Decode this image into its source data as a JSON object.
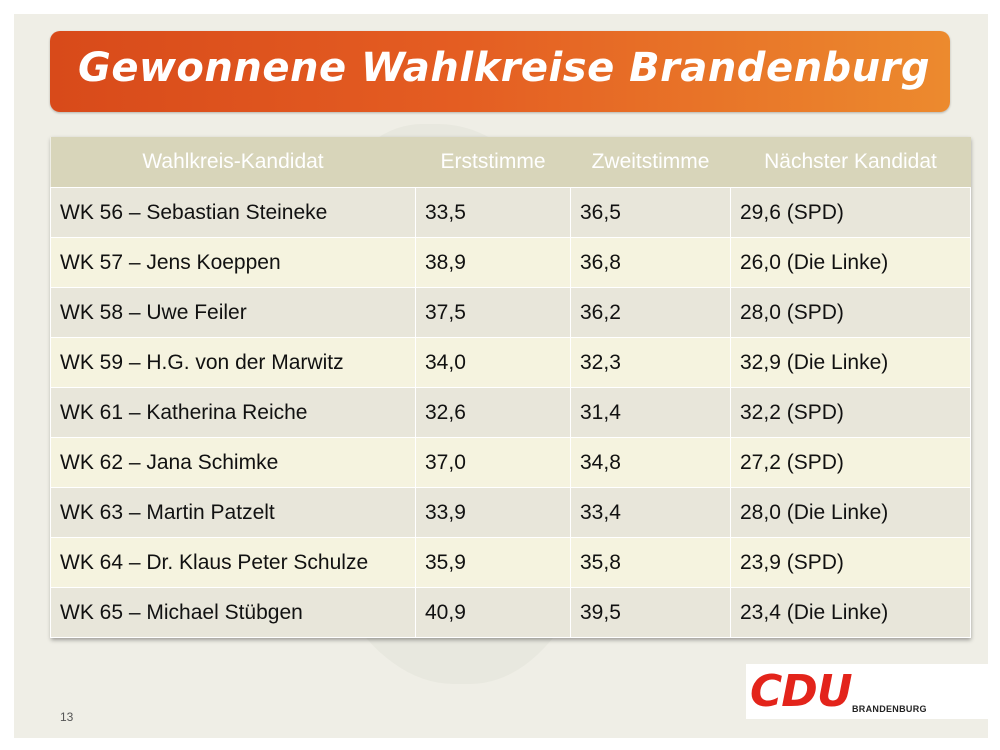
{
  "title": "Gewonnene Wahlkreise Brandenburg",
  "table": {
    "headers": [
      "Wahlkreis-Kandidat",
      "Erststimme",
      "Zweitstimme",
      "Nächster Kandidat"
    ],
    "rows": [
      [
        "WK 56 – Sebastian Steineke",
        "33,5",
        "36,5",
        "29,6 (SPD)"
      ],
      [
        "WK 57 – Jens Koeppen",
        "38,9",
        "36,8",
        "26,0 (Die Linke)"
      ],
      [
        "WK 58 – Uwe Feiler",
        "37,5",
        "36,2",
        "28,0 (SPD)"
      ],
      [
        "WK 59 – H.G. von der Marwitz",
        "34,0",
        "32,3",
        "32,9 (Die Linke)"
      ],
      [
        "WK 61 – Katherina Reiche",
        "32,6",
        "31,4",
        "32,2 (SPD)"
      ],
      [
        "WK 62 – Jana Schimke",
        "37,0",
        "34,8",
        "27,2 (SPD)"
      ],
      [
        "WK 63 – Martin Patzelt",
        "33,9",
        "33,4",
        "28,0 (Die Linke)"
      ],
      [
        "WK 64 – Dr. Klaus Peter Schulze",
        "35,9",
        "35,8",
        "23,9 (SPD)"
      ],
      [
        "WK 65 – Michael Stübgen",
        "40,9",
        "39,5",
        "23,4 (Die Linke)"
      ]
    ]
  },
  "page_number": "13",
  "logo": {
    "main": "CDU",
    "sub": "BRANDENBURG"
  },
  "colors": {
    "title_gradient_start": "#d84a1a",
    "title_gradient_end": "#ec8a2e",
    "header_bg": "#d8d5ba",
    "logo_red": "#e3241b"
  }
}
